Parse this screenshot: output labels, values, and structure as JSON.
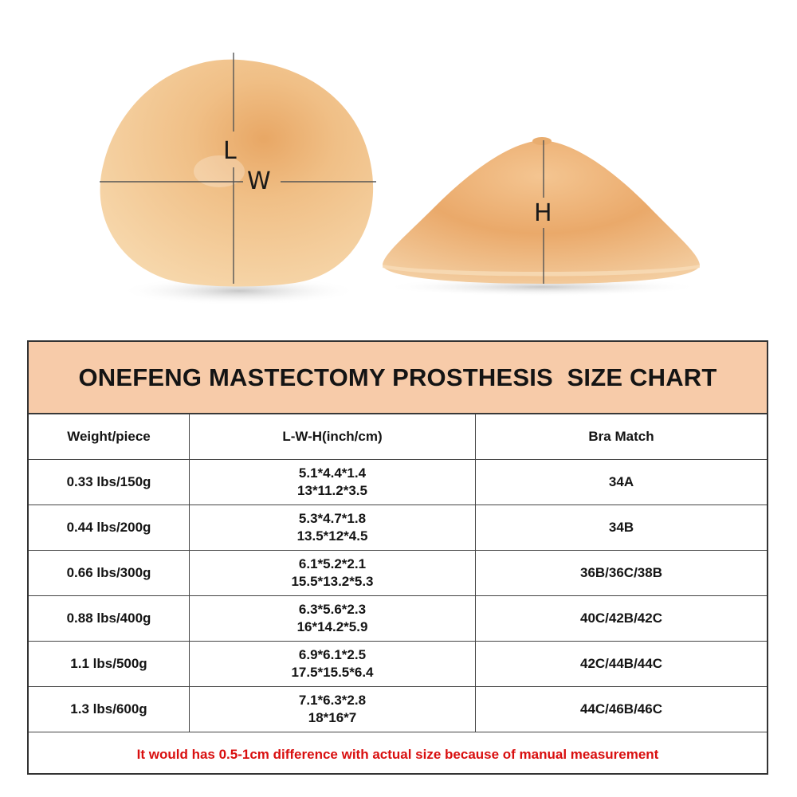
{
  "labels": {
    "length": "L",
    "width": "W",
    "height": "H"
  },
  "colors": {
    "header_bg": "#f7cba9",
    "note_text": "#d90f0f",
    "prosthesis_light": "#f5d3a5",
    "prosthesis_dark": "#e2a260"
  },
  "chart": {
    "title": "ONEFENG MASTECTOMY PROSTHESIS  SIZE CHART",
    "headers": [
      "Weight/piece",
      "L-W-H(inch/cm)",
      "Bra Match"
    ],
    "rows": [
      {
        "weight": "0.33 lbs/150g",
        "inch": "5.1*4.4*1.4",
        "cm": "13*11.2*3.5",
        "bra": "34A"
      },
      {
        "weight": "0.44 lbs/200g",
        "inch": "5.3*4.7*1.8",
        "cm": "13.5*12*4.5",
        "bra": "34B"
      },
      {
        "weight": "0.66 lbs/300g",
        "inch": "6.1*5.2*2.1",
        "cm": "15.5*13.2*5.3",
        "bra": "36B/36C/38B"
      },
      {
        "weight": "0.88 lbs/400g",
        "inch": "6.3*5.6*2.3",
        "cm": "16*14.2*5.9",
        "bra": "40C/42B/42C"
      },
      {
        "weight": "1.1 lbs/500g",
        "inch": "6.9*6.1*2.5",
        "cm": "17.5*15.5*6.4",
        "bra": "42C/44B/44C"
      },
      {
        "weight": "1.3 lbs/600g",
        "inch": "7.1*6.3*2.8",
        "cm": "18*16*7",
        "bra": "44C/46B/46C"
      }
    ],
    "note": "It would has 0.5-1cm difference with actual size because of manual measurement"
  }
}
